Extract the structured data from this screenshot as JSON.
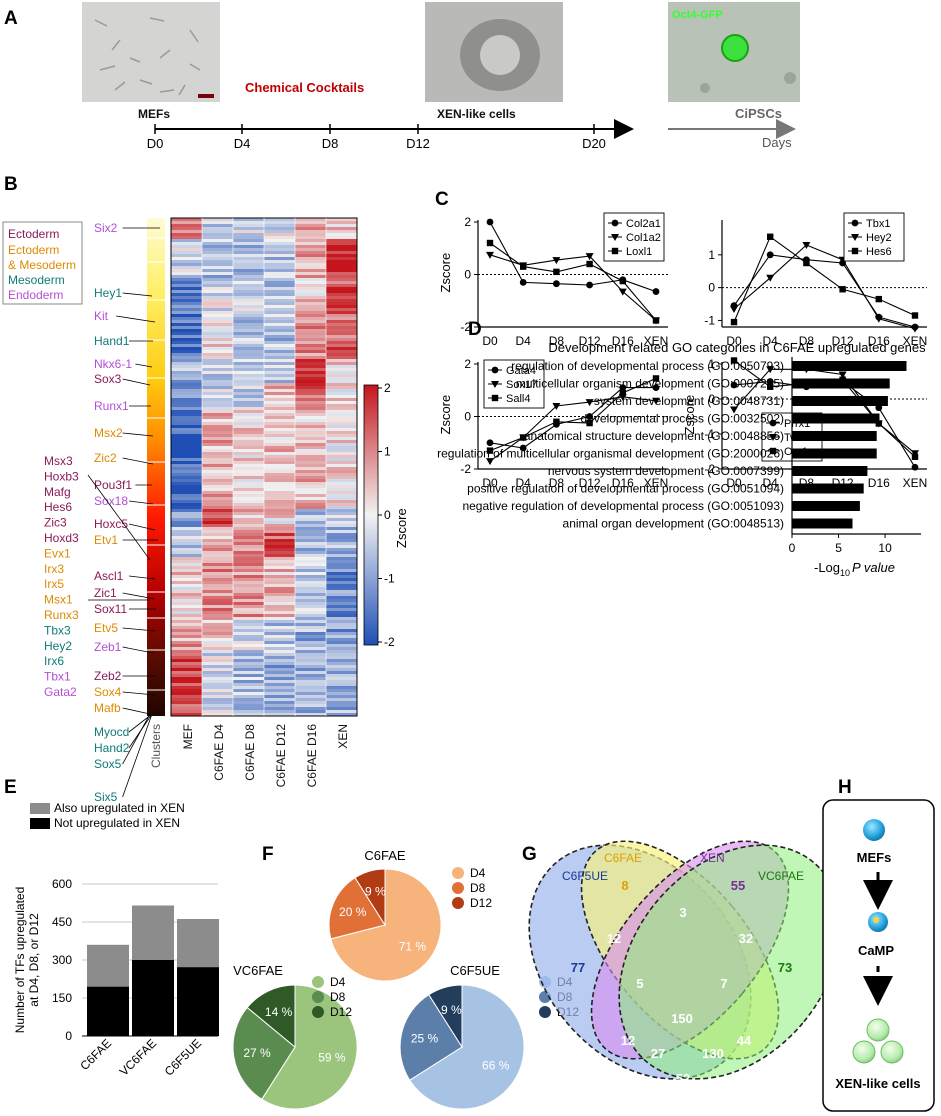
{
  "panels": {
    "A": "A",
    "B": "B",
    "C": "C",
    "D": "D",
    "E": "E",
    "F": "F",
    "G": "G",
    "H": "H"
  },
  "colors": {
    "heat_low": "#1f4fb5",
    "heat_mid": "#f2f2f2",
    "heat_high": "#c4161c",
    "red_text": "#c00000",
    "green_gfp": "#33ff33",
    "ecto": "#8b1a5a",
    "ecto_meso": "#e08a00",
    "meso": "#117a7a",
    "endo": "#b44fd6",
    "venn_c6f5ue": "#9db7ec",
    "venn_c6fae": "#f7f27a",
    "venn_xen": "#d98cf0",
    "venn_vc6fae": "#8ef07a"
  },
  "panelA": {
    "labels": {
      "mefs": "MEFs",
      "cocktail": "Chemical Cocktails",
      "xen": "XEN-like cells",
      "cipsc": "CiPSCs",
      "gfp": "Oct4-GFP",
      "days": "Days"
    },
    "ticks": [
      "D0",
      "D4",
      "D8",
      "D12",
      "D20"
    ]
  },
  "panelB": {
    "legend": [
      "Ectoderm",
      "Ectoderm",
      "& Mesoderm",
      "Mesoderm",
      "Endoderm"
    ],
    "genes": [
      {
        "name": "Six2",
        "c": "endo"
      },
      {
        "name": "Hey1",
        "c": "meso"
      },
      {
        "name": "Kit",
        "c": "endo"
      },
      {
        "name": "Hand1",
        "c": "meso"
      },
      {
        "name": "Nkx6-1",
        "c": "endo"
      },
      {
        "name": "Sox3",
        "c": "ecto"
      },
      {
        "name": "Runx1",
        "c": "endo"
      },
      {
        "name": "Msx2",
        "c": "ecto_meso"
      },
      {
        "name": "Zic2",
        "c": "ecto_meso"
      },
      {
        "name": "Pou3f1",
        "c": "ecto"
      },
      {
        "name": "Sox18",
        "c": "endo"
      },
      {
        "name": "Hoxc5",
        "c": "ecto"
      },
      {
        "name": "Etv1",
        "c": "ecto_meso"
      },
      {
        "name": "Ascl1",
        "c": "ecto"
      },
      {
        "name": "Zic1",
        "c": "ecto"
      },
      {
        "name": "Sox11",
        "c": "ecto"
      },
      {
        "name": "Etv5",
        "c": "ecto_meso"
      },
      {
        "name": "Zeb1",
        "c": "endo"
      },
      {
        "name": "Zeb2",
        "c": "ecto"
      },
      {
        "name": "Sox4",
        "c": "ecto_meso"
      },
      {
        "name": "Mafb",
        "c": "ecto_meso"
      },
      {
        "name": "Myocd",
        "c": "meso"
      },
      {
        "name": "Hand2",
        "c": "meso"
      },
      {
        "name": "Sox5",
        "c": "meso"
      },
      {
        "name": "Six5",
        "c": "meso"
      }
    ],
    "left_genes": [
      {
        "name": "Msx3",
        "c": "ecto"
      },
      {
        "name": "Hoxb3",
        "c": "ecto"
      },
      {
        "name": "Mafg",
        "c": "ecto"
      },
      {
        "name": "Hes6",
        "c": "ecto"
      },
      {
        "name": "Zic3",
        "c": "ecto"
      },
      {
        "name": "Hoxd3",
        "c": "ecto"
      },
      {
        "name": "Evx1",
        "c": "ecto_meso"
      },
      {
        "name": "Irx3",
        "c": "ecto_meso"
      },
      {
        "name": "Irx5",
        "c": "ecto_meso"
      },
      {
        "name": "Msx1",
        "c": "ecto_meso"
      },
      {
        "name": "Runx3",
        "c": "ecto_meso"
      },
      {
        "name": "Tbx3",
        "c": "meso"
      },
      {
        "name": "Hey2",
        "c": "meso"
      },
      {
        "name": "Irx6",
        "c": "meso"
      },
      {
        "name": "Tbx1",
        "c": "endo"
      },
      {
        "name": "Gata2",
        "c": "endo"
      }
    ],
    "columns": [
      "Clusters",
      "MEF",
      "C6FAE D4",
      "C6FAE D8",
      "C6FAE D12",
      "C6FAE D16",
      "XEN"
    ],
    "colorbar": {
      "label": "Zscore",
      "ticks": [
        "2",
        "1",
        "0",
        "-1",
        "-2"
      ]
    }
  },
  "chart_data": [
    {
      "type": "line",
      "panel": "C1",
      "ylabel": "Zscore",
      "categories": [
        "D0",
        "D4",
        "D8",
        "D12",
        "D16",
        "XEN"
      ],
      "ylim": [
        -2,
        2
      ],
      "yticks": [
        "2",
        "0",
        "-2"
      ],
      "series": [
        {
          "name": "Col2a1",
          "marker": "circle",
          "values": [
            2.0,
            -0.3,
            -0.35,
            -0.4,
            -0.2,
            -0.65
          ]
        },
        {
          "name": "Col1a2",
          "marker": "triangle",
          "values": [
            0.75,
            0.35,
            0.55,
            0.7,
            -0.65,
            -1.75
          ]
        },
        {
          "name": "Loxl1",
          "marker": "square",
          "values": [
            1.2,
            0.3,
            0.1,
            0.4,
            -0.25,
            -1.75
          ]
        }
      ]
    },
    {
      "type": "line",
      "panel": "C2",
      "ylabel": "",
      "categories": [
        "D0",
        "D4",
        "D8",
        "D12",
        "D16",
        "XEN"
      ],
      "ylim": [
        -1.2,
        2
      ],
      "yticks": [
        "1",
        "0",
        "-1"
      ],
      "series": [
        {
          "name": "Tbx1",
          "marker": "circle",
          "values": [
            -0.55,
            1.0,
            0.85,
            0.75,
            -0.9,
            -1.2
          ]
        },
        {
          "name": "Hey2",
          "marker": "triangle",
          "values": [
            -0.65,
            0.3,
            1.3,
            0.85,
            -0.95,
            -1.25
          ]
        },
        {
          "name": "Hes6",
          "marker": "square",
          "values": [
            -1.05,
            1.55,
            0.75,
            -0.05,
            -0.35,
            -0.85
          ]
        }
      ]
    },
    {
      "type": "line",
      "panel": "C3",
      "ylabel": "Zscore",
      "categories": [
        "D0",
        "D4",
        "D8",
        "D12",
        "D16",
        "XEN"
      ],
      "ylim": [
        -2,
        2
      ],
      "yticks": [
        "2",
        "0",
        "-2"
      ],
      "series": [
        {
          "name": "Gata4",
          "marker": "circle",
          "values": [
            -1.0,
            -1.2,
            -0.3,
            0.0,
            1.1,
            1.1
          ]
        },
        {
          "name": "Sox17",
          "marker": "triangle",
          "values": [
            -1.7,
            -0.8,
            0.4,
            0.55,
            0.75,
            0.6
          ]
        },
        {
          "name": "Sall4",
          "marker": "square",
          "values": [
            -1.3,
            -0.8,
            -0.2,
            -0.25,
            0.9,
            1.45
          ]
        }
      ]
    },
    {
      "type": "line",
      "panel": "C4",
      "ylabel": "Zscore",
      "categories": [
        "D0",
        "D4",
        "D8",
        "D12",
        "D16",
        "XEN"
      ],
      "ylim": [
        -2,
        1
      ],
      "yticks": [
        "1",
        "0",
        "-1",
        "-2"
      ],
      "series": [
        {
          "name": "Prrx1",
          "marker": "circle",
          "values": [
            0.4,
            0.5,
            0.35,
            0.5,
            -0.25,
            -1.95
          ]
        },
        {
          "name": "Twist1",
          "marker": "triangle",
          "values": [
            -0.3,
            0.85,
            0.85,
            0.7,
            -0.7,
            -1.55
          ]
        },
        {
          "name": "Osr1",
          "marker": "square",
          "values": [
            1.1,
            0.35,
            0.45,
            0.55,
            -0.7,
            -1.65
          ]
        }
      ]
    },
    {
      "type": "bar",
      "panel": "D",
      "orientation": "horizontal",
      "title": "Development related GO categories in C6FAE upregulated genes",
      "xlabel": "-Log",
      "xlabel_sub": "10",
      "xlabel_tail": "P value",
      "xlim": [
        0,
        13
      ],
      "xticks": [
        "0",
        "5",
        "10"
      ],
      "categories": [
        "regulation of developmental process (GO:0050793)",
        "multicellular organism development (GO:0007275)",
        "system development (GO:0048731)",
        "developmental process (GO:0032502)",
        "anatomical structure development (GO:0048856)",
        "regulation of multicellular organismal development (GO:2000026)",
        "nervous system development (GO:0007399)",
        "positive regulation of developmental process (GO:0051094)",
        "negative regulation of developmental process (GO:0051093)",
        "animal organ development (GO:0048513)"
      ],
      "values": [
        12.3,
        10.5,
        10.3,
        9.4,
        9.1,
        9.1,
        8.1,
        7.7,
        7.3,
        6.5
      ]
    },
    {
      "type": "bar",
      "panel": "E",
      "stacked": true,
      "ylabel": "Number of TFs upregulated at D4, D8, or D12",
      "ylim": [
        0,
        600
      ],
      "yticks": [
        "600",
        "450",
        "300",
        "150",
        "0"
      ],
      "categories": [
        "C6FAE",
        "VC6FAE",
        "C6F5UE"
      ],
      "series": [
        {
          "name": "Not upregulated in XEN",
          "color": "#000000",
          "values": [
            195,
            300,
            272
          ]
        },
        {
          "name": "Also upregulated in XEN",
          "color": "#8c8c8c",
          "values": [
            165,
            215,
            190
          ]
        }
      ]
    },
    {
      "type": "pie",
      "panel": "F",
      "title": "C6FAE",
      "labels": [
        "D4",
        "D8",
        "D12"
      ],
      "values": [
        71,
        20,
        9
      ],
      "value_labels": [
        "71 %",
        "20 %",
        "9 %"
      ],
      "colors": [
        "#f6b37c",
        "#e07036",
        "#b13b12"
      ]
    },
    {
      "type": "pie",
      "panel": "F",
      "title": "VC6FAE",
      "labels": [
        "D4",
        "D8",
        "D12"
      ],
      "values": [
        59,
        27,
        14
      ],
      "value_labels": [
        "59 %",
        "27 %",
        "14 %"
      ],
      "colors": [
        "#9bc47c",
        "#5a8c4f",
        "#2f5a27"
      ]
    },
    {
      "type": "pie",
      "panel": "F",
      "title": "C6F5UE",
      "labels": [
        "D4",
        "D8",
        "D12"
      ],
      "values": [
        66,
        25,
        9
      ],
      "value_labels": [
        "66 %",
        "25 %",
        "9 %"
      ],
      "colors": [
        "#a7c3e4",
        "#5b7fa8",
        "#223e5c"
      ]
    }
  ],
  "panelG": {
    "sets": [
      "C6F5UE",
      "C6FAE",
      "XEN",
      "VC6FAE"
    ],
    "counts": {
      "c6f5ue_only": "77",
      "c6fae_only": "8",
      "xen_only": "55",
      "vc6fae_only": "73",
      "a": "12",
      "b": "3",
      "c": "32",
      "d": "5",
      "e": "7",
      "f": "150",
      "g": "12",
      "h": "27",
      "i": "130",
      "j": "44",
      "k": "52"
    }
  },
  "panelH": {
    "labels": [
      "MEFs",
      "CaMP",
      "XEN-like cells"
    ]
  }
}
